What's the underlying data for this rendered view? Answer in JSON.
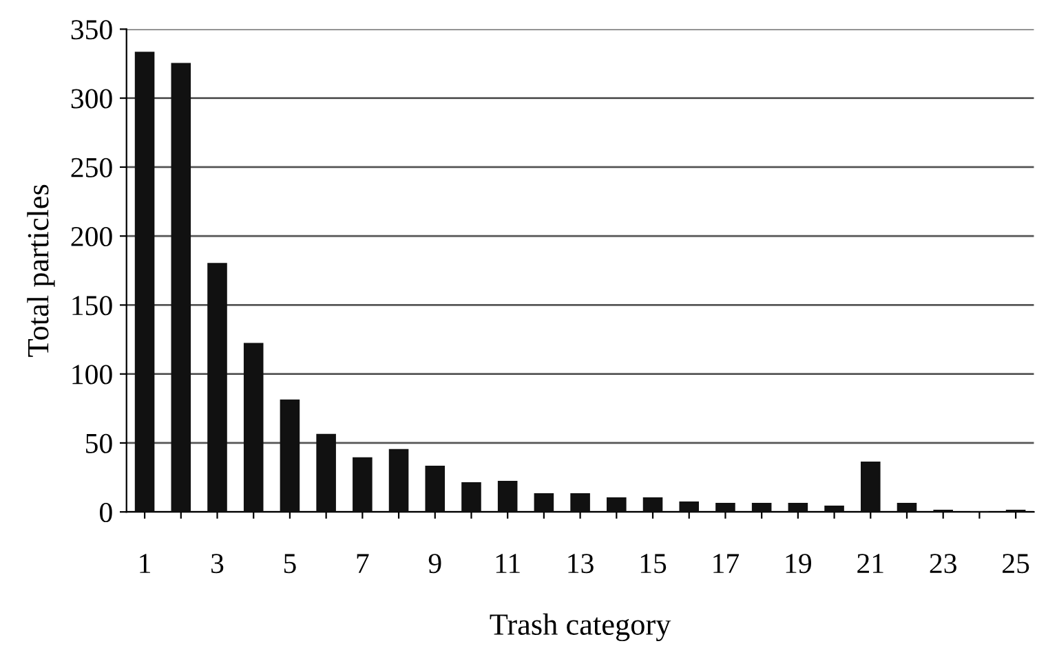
{
  "chart_data": {
    "type": "bar",
    "xlabel": "Trash category",
    "ylabel": "Total particles",
    "categories": [
      "1",
      null,
      "3",
      null,
      "5",
      null,
      "7",
      null,
      "9",
      null,
      "11",
      null,
      "13",
      null,
      "15",
      null,
      "17",
      null,
      "19",
      null,
      "21",
      null,
      "23",
      null,
      "25"
    ],
    "values": [
      333,
      325,
      180,
      122,
      81,
      56,
      39,
      45,
      33,
      21,
      22,
      13,
      13,
      10,
      10,
      7,
      6,
      6,
      6,
      4,
      36,
      6,
      1,
      0,
      1
    ],
    "color": "#111111",
    "ylim": [
      0,
      350
    ],
    "yticks": [
      0,
      50,
      100,
      150,
      200,
      250,
      300,
      350
    ],
    "grid": "y"
  }
}
